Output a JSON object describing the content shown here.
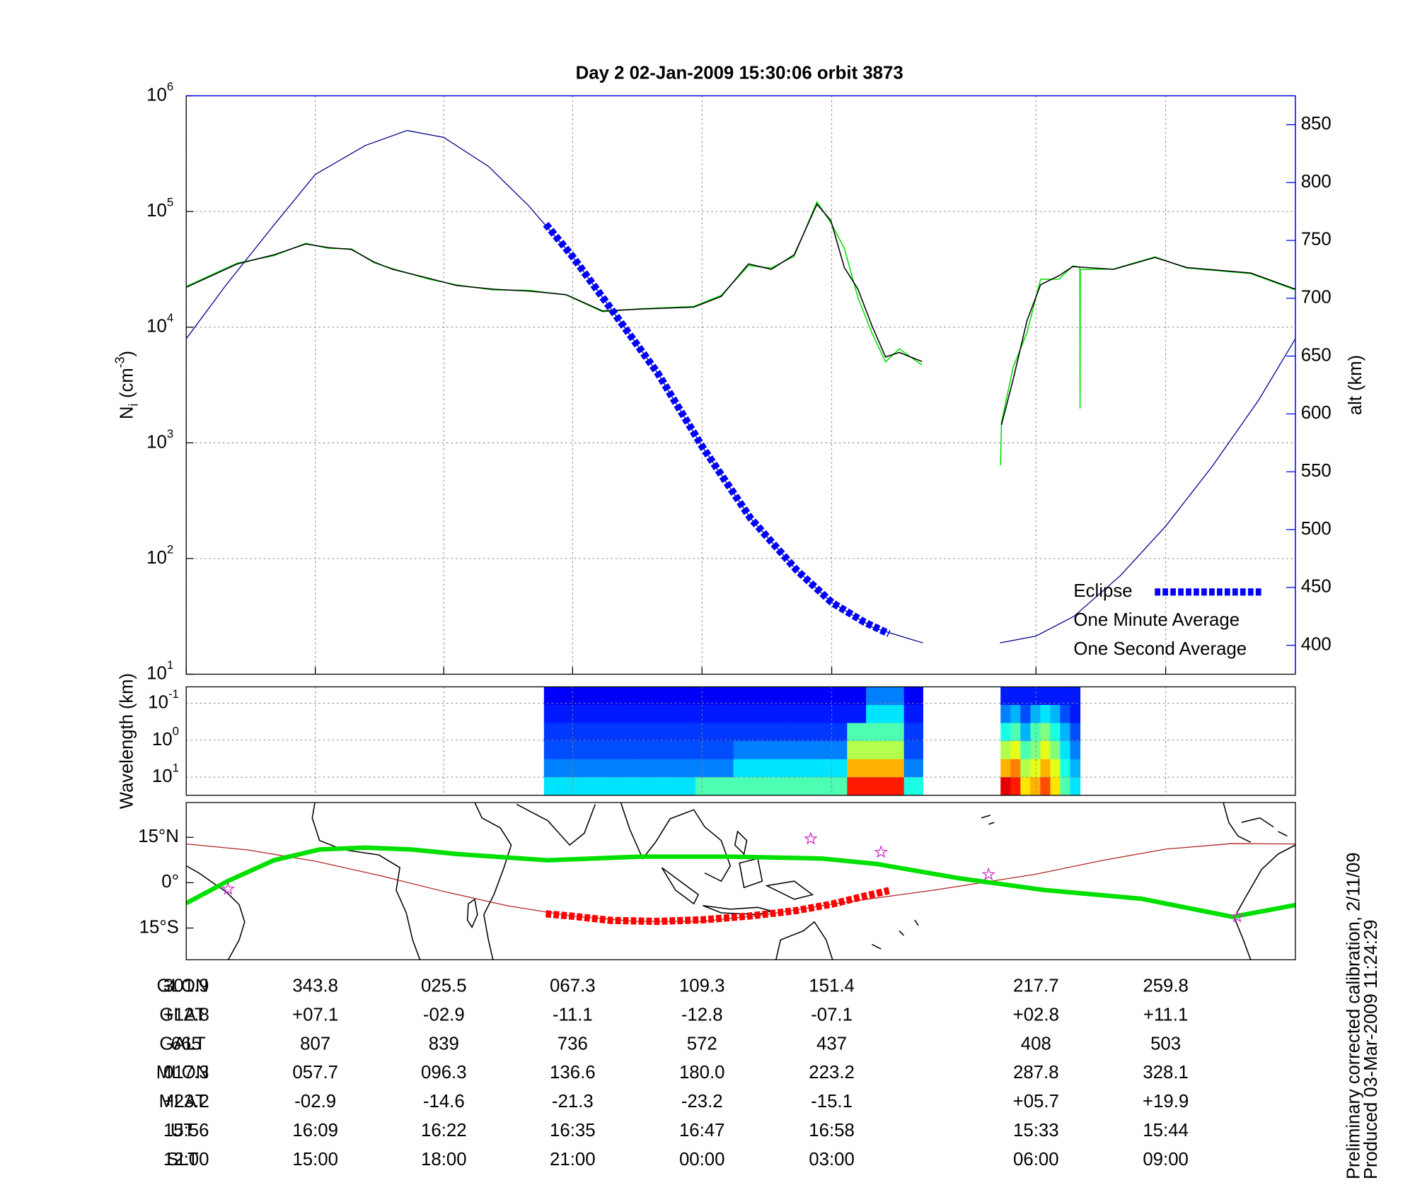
{
  "title": "Day 2  02-Jan-2009 15:30:06   orbit 3873",
  "chart_data": [
    {
      "type": "line",
      "ylabel": {
        "main": "N",
        "sub": "i",
        "unit": "(cm",
        "sup": "-3",
        "close": ")"
      },
      "y2label": "alt (km)",
      "log_y": true,
      "grid": true,
      "legend": "lower right",
      "xlim": [
        301.9,
        661.9
      ],
      "ylim": [
        10,
        1000000
      ],
      "yticks": [
        {
          "value": 10,
          "label": "10",
          "exp": "1"
        },
        {
          "value": 100,
          "label": "10",
          "exp": "2"
        },
        {
          "value": 1000,
          "label": "10",
          "exp": "3"
        },
        {
          "value": 10000,
          "label": "10",
          "exp": "4"
        },
        {
          "value": 100000,
          "label": "10",
          "exp": "5"
        },
        {
          "value": 1000000,
          "label": "10",
          "exp": "6"
        }
      ],
      "y2lim": [
        375,
        875
      ],
      "y2ticks": [
        400,
        450,
        500,
        550,
        600,
        650,
        700,
        750,
        800,
        850
      ],
      "y2color": "#0000ff",
      "altitude": {
        "color": "#00008b",
        "axis": "y2",
        "x": [
          301.9,
          315,
          330,
          343.8,
          360,
          373.6,
          385.5,
          400,
          413,
          427.3,
          440,
          455,
          469.3,
          485,
          500,
          511.4,
          525,
          541,
          553,
          566,
          577.7,
          590,
          605,
          619.8,
          635,
          650,
          661.9
        ],
        "values": [
          665,
          712,
          762,
          807,
          832,
          845,
          839,
          814,
          780,
          736,
          690,
          635,
          572,
          510,
          465,
          437,
          415,
          402,
          null,
          402,
          408,
          425,
          460,
          503,
          555,
          612,
          665
        ]
      },
      "series": [
        {
          "name": "Eclipse",
          "color": "#0000ff",
          "axis": "y2",
          "style": "thick-dashed",
          "x": [
            418.6,
            427.3,
            440,
            455,
            469.3,
            485,
            500,
            511.4,
            522,
            530
          ],
          "values": [
            764,
            736,
            690,
            635,
            572,
            510,
            465,
            437,
            420,
            410
          ]
        },
        {
          "name": "One Minute Average",
          "color": "#000000",
          "style": "thin",
          "x": [
            301.9,
            318.5,
            330.3,
            340.7,
            348.1,
            355.5,
            362.9,
            368.9,
            380.7,
            389.6,
            401.5,
            413.3,
            425.2,
            437.0,
            448.9,
            466.6,
            475.5,
            484.4,
            491.8,
            499.2,
            506.6,
            511.1,
            515.5,
            519.9,
            524.4,
            528.9,
            533.3,
            540.7,
            553,
            566.5,
            570.3,
            574.8,
            579.2,
            585.2,
            589.6,
            602.9,
            616.3,
            626.6,
            647.4,
            661.9
          ],
          "values": [
            22100,
            35200,
            42200,
            52400,
            48700,
            47000,
            36500,
            31600,
            26400,
            22900,
            21300,
            20500,
            19100,
            13800,
            14300,
            14900,
            18400,
            35200,
            31600,
            42200,
            115600,
            83600,
            32800,
            21300,
            10400,
            5520,
            6040,
            5050,
            null,
            1430,
            3520,
            11400,
            23300,
            27900,
            33400,
            31600,
            40000,
            32800,
            29400,
            21300
          ]
        },
        {
          "name": "One Second Average",
          "color": "#00e000",
          "style": "thin",
          "x": [
            301.9,
            318.5,
            330.3,
            340.7,
            348.1,
            355.5,
            362.9,
            368.9,
            380.7,
            389.6,
            401.5,
            413.3,
            425.2,
            437.0,
            448.9,
            466.6,
            475.5,
            484.4,
            491.8,
            499.2,
            506.6,
            511.1,
            515.5,
            519.9,
            524.4,
            528.9,
            533.3,
            540.7,
            553,
            566.2,
            566.5,
            570.3,
            574.8,
            579.2,
            585.2,
            589.6,
            591.9,
            592.0,
            592.1,
            602.9,
            616.3,
            626.6,
            647.4,
            661.9
          ],
          "values": [
            22500,
            35800,
            41500,
            53000,
            48000,
            47500,
            36000,
            32000,
            26000,
            23200,
            21000,
            20800,
            19000,
            13600,
            14400,
            15100,
            18800,
            34000,
            32500,
            41000,
            121000,
            80000,
            48000,
            18000,
            9000,
            5000,
            6500,
            4700,
            null,
            640,
            1500,
            4500,
            9000,
            26000,
            26000,
            33800,
            33000,
            1980,
            31500,
            31800,
            40500,
            32500,
            29000,
            21000
          ]
        }
      ]
    },
    {
      "type": "heatmap",
      "ylabel": "Wavelength (km)",
      "log_y": true,
      "inverted": true,
      "grid": true,
      "colormap": "jet",
      "ylim": [
        0.036,
        31
      ],
      "yticks": [
        {
          "value": 0.1,
          "label": "10",
          "exp": "-1"
        },
        {
          "value": 1,
          "label": "10",
          "exp": "0"
        },
        {
          "value": 10,
          "label": "10",
          "exp": "1"
        }
      ],
      "blocks": [
        {
          "xlim": [
            418.0,
            541.0
          ],
          "cells": [
            [
              0.12,
              0.12,
              0.12,
              0.12,
              0.12,
              0.12,
              0.12,
              0.12,
              0.12,
              0.12,
              0.12,
              0.12,
              0.12,
              0.12,
              0.12,
              0.12,
              0.12,
              0.25,
              0.25,
              0.12
            ],
            [
              0.15,
              0.15,
              0.15,
              0.15,
              0.15,
              0.15,
              0.15,
              0.15,
              0.15,
              0.15,
              0.15,
              0.15,
              0.15,
              0.15,
              0.15,
              0.15,
              0.15,
              0.35,
              0.35,
              0.15
            ],
            [
              0.18,
              0.18,
              0.18,
              0.18,
              0.18,
              0.18,
              0.18,
              0.18,
              0.18,
              0.18,
              0.18,
              0.18,
              0.18,
              0.18,
              0.18,
              0.18,
              0.45,
              0.45,
              0.45,
              0.18
            ],
            [
              0.2,
              0.2,
              0.2,
              0.2,
              0.2,
              0.2,
              0.2,
              0.2,
              0.2,
              0.2,
              0.25,
              0.25,
              0.25,
              0.25,
              0.25,
              0.25,
              0.55,
              0.55,
              0.55,
              0.2
            ],
            [
              0.25,
              0.25,
              0.25,
              0.25,
              0.25,
              0.25,
              0.25,
              0.25,
              0.25,
              0.25,
              0.35,
              0.35,
              0.35,
              0.35,
              0.35,
              0.35,
              0.7,
              0.7,
              0.7,
              0.25
            ],
            [
              0.35,
              0.35,
              0.35,
              0.35,
              0.35,
              0.35,
              0.35,
              0.35,
              0.45,
              0.45,
              0.45,
              0.45,
              0.45,
              0.45,
              0.45,
              0.45,
              0.85,
              0.85,
              0.85,
              0.4
            ]
          ]
        },
        {
          "xlim": [
            566.2,
            592.0
          ],
          "cells": [
            [
              0.15,
              0.15,
              0.15,
              0.15,
              0.15,
              0.15,
              0.15,
              0.15
            ],
            [
              0.25,
              0.3,
              0.2,
              0.3,
              0.35,
              0.3,
              0.2,
              0.15
            ],
            [
              0.4,
              0.45,
              0.3,
              0.45,
              0.5,
              0.4,
              0.3,
              0.2
            ],
            [
              0.55,
              0.6,
              0.45,
              0.5,
              0.6,
              0.5,
              0.35,
              0.25
            ],
            [
              0.7,
              0.75,
              0.55,
              0.6,
              0.7,
              0.6,
              0.4,
              0.3
            ],
            [
              0.9,
              0.85,
              0.65,
              0.7,
              0.8,
              0.65,
              0.45,
              0.35
            ]
          ]
        }
      ]
    },
    {
      "type": "map",
      "ylim": [
        -25.5,
        26.5
      ],
      "yticks": [
        {
          "value": 15,
          "label": "15°N"
        },
        {
          "value": 0,
          "label": "0°"
        },
        {
          "value": -15,
          "label": "15°S"
        }
      ],
      "equator": {
        "color": "#00e000",
        "x": [
          301.9,
          315.5,
          330.3,
          345.2,
          360,
          374.8,
          389.6,
          419.2,
          448.9,
          478.5,
          508.1,
          525.9,
          552.6,
          580.2,
          611.8,
          626.6,
          641.5,
          661.9
        ],
        "values": [
          -6.8,
          0.6,
          7.4,
          11,
          11.6,
          11,
          9.5,
          7.4,
          8.6,
          8.6,
          8,
          6.2,
          1.5,
          -2.4,
          -5.3,
          -8.3,
          -11.3,
          -7.4
        ]
      },
      "track": {
        "color": "#b22222",
        "x": [
          301.9,
          322,
          343.8,
          365,
          385.5,
          406,
          427.3,
          448,
          469.3,
          490,
          511.4,
          545,
          577.7,
          599,
          619.8,
          641,
          661.9
        ],
        "values": [
          12.8,
          10.8,
          7.1,
          2.3,
          -2.9,
          -7.6,
          -11.1,
          -12.8,
          -12.8,
          -10.6,
          -7.1,
          -2.4,
          2.8,
          7.3,
          11.1,
          12.9,
          12.8
        ]
      },
      "eclipse_track": {
        "color": "#ff0000",
        "x": [
          418.6,
          427.3,
          440,
          455,
          469.3,
          485,
          500,
          511.4,
          522,
          530
        ],
        "values": [
          -10.3,
          -11.1,
          -12.5,
          -12.8,
          -12.3,
          -11,
          -9.2,
          -7.1,
          -4.5,
          -2.6
        ]
      },
      "stars": {
        "color": "#cc33cc",
        "x": [
          315.5,
          504.6,
          527.4,
          562.3,
          643.0
        ],
        "values": [
          -2.1,
          14.5,
          10.1,
          2.7,
          -11.3
        ]
      }
    }
  ],
  "table": {
    "rows": [
      {
        "label": "GLON",
        "values": [
          "343.8",
          "025.5",
          "067.3",
          "109.3",
          "151.4",
          "217.7",
          "259.8",
          "301.9"
        ]
      },
      {
        "label": "GLAT",
        "values": [
          "+07.1",
          "-02.9",
          "-11.1",
          "-12.8",
          "-07.1",
          "+02.8",
          "+11.1",
          "+12.8"
        ]
      },
      {
        "label": "GALT",
        "values": [
          "807",
          "839",
          "736",
          "572",
          "437",
          "408",
          "503",
          "665"
        ]
      },
      {
        "label": "MLON",
        "values": [
          "057.7",
          "096.3",
          "136.6",
          "180.0",
          "223.2",
          "287.8",
          "328.1",
          "017.3"
        ]
      },
      {
        "label": "MLAT",
        "values": [
          "-02.9",
          "-14.6",
          "-21.3",
          "-23.2",
          "-15.1",
          "+05.7",
          "+19.9",
          "+23.2"
        ]
      },
      {
        "label": "UT",
        "values": [
          "16:09",
          "16:22",
          "16:35",
          "16:47",
          "16:58",
          "15:33",
          "15:44",
          "15:56"
        ]
      },
      {
        "label": "SLT",
        "values": [
          "15:00",
          "18:00",
          "21:00",
          "00:00",
          "03:00",
          "06:00",
          "09:00",
          "12:00"
        ]
      }
    ]
  },
  "notes": [
    "Preliminary corrected calibration, 2/11/09",
    "Produced 03-Mar-2009 11:24:29"
  ]
}
